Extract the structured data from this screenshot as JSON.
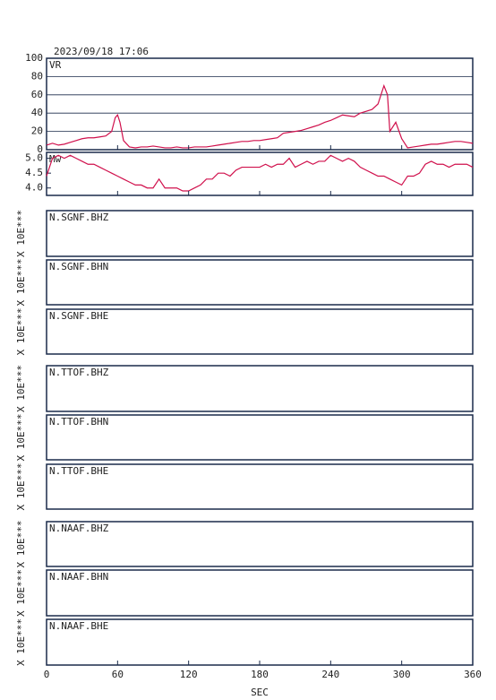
{
  "chart_data": [
    {
      "type": "line",
      "title": "2023/09/18 17:06",
      "label": "VR",
      "xlim": [
        0,
        360
      ],
      "ylim": [
        0,
        100
      ],
      "yticks": [
        0,
        20,
        40,
        60,
        80,
        100
      ],
      "grid": true,
      "x": [
        0,
        5,
        10,
        15,
        20,
        25,
        30,
        35,
        40,
        45,
        50,
        55,
        58,
        60,
        62,
        65,
        70,
        75,
        80,
        85,
        90,
        95,
        100,
        105,
        110,
        115,
        120,
        125,
        130,
        135,
        140,
        145,
        150,
        155,
        160,
        165,
        170,
        175,
        180,
        185,
        190,
        195,
        200,
        205,
        210,
        215,
        220,
        225,
        230,
        235,
        240,
        245,
        250,
        255,
        260,
        265,
        270,
        275,
        280,
        285,
        288,
        290,
        295,
        300,
        305,
        310,
        315,
        320,
        325,
        330,
        335,
        340,
        345,
        350,
        355,
        360
      ],
      "series": [
        {
          "color": "#d0104c",
          "values": [
            5,
            7,
            5,
            6,
            8,
            10,
            12,
            13,
            13,
            14,
            15,
            20,
            35,
            38,
            30,
            10,
            3,
            2,
            3,
            3,
            4,
            3,
            2,
            2,
            3,
            2,
            2,
            3,
            3,
            3,
            4,
            5,
            6,
            7,
            8,
            9,
            9,
            10,
            10,
            11,
            12,
            13,
            18,
            19,
            20,
            21,
            23,
            25,
            27,
            30,
            32,
            35,
            38,
            37,
            36,
            40,
            42,
            44,
            50,
            70,
            60,
            20,
            30,
            12,
            2,
            3,
            4,
            5,
            6,
            6,
            7,
            8,
            9,
            9,
            8,
            7
          ]
        }
      ]
    },
    {
      "type": "line",
      "label": "Mw",
      "xlim": [
        0,
        360
      ],
      "ylim": [
        3.75,
        5.2
      ],
      "yticks": [
        {
          "value": 4,
          "label": "4.0"
        },
        4.5,
        {
          "value": 5,
          "label": "5.0"
        }
      ],
      "grid": false,
      "x": [
        0,
        5,
        10,
        15,
        20,
        25,
        30,
        35,
        40,
        45,
        50,
        55,
        60,
        65,
        70,
        75,
        80,
        85,
        90,
        95,
        100,
        105,
        110,
        115,
        120,
        125,
        130,
        135,
        140,
        145,
        150,
        155,
        160,
        165,
        170,
        175,
        180,
        185,
        190,
        195,
        200,
        205,
        210,
        215,
        220,
        225,
        230,
        235,
        240,
        245,
        250,
        255,
        260,
        265,
        270,
        275,
        280,
        285,
        290,
        295,
        300,
        305,
        310,
        315,
        320,
        325,
        330,
        335,
        340,
        345,
        350,
        355,
        360
      ],
      "series": [
        {
          "color": "#d0104c",
          "values": [
            4.4,
            5.0,
            5.1,
            5.0,
            5.1,
            5.0,
            4.9,
            4.8,
            4.8,
            4.7,
            4.6,
            4.5,
            4.4,
            4.3,
            4.2,
            4.1,
            4.1,
            4.0,
            4.0,
            4.3,
            4.0,
            4.0,
            4.0,
            3.9,
            3.9,
            4.0,
            4.1,
            4.3,
            4.3,
            4.5,
            4.5,
            4.4,
            4.6,
            4.7,
            4.7,
            4.7,
            4.7,
            4.8,
            4.7,
            4.8,
            4.8,
            5.0,
            4.7,
            4.8,
            4.9,
            4.8,
            4.9,
            4.9,
            5.1,
            5.0,
            4.9,
            5.0,
            4.9,
            4.7,
            4.6,
            4.5,
            4.4,
            4.4,
            4.3,
            4.2,
            4.1,
            4.4,
            4.4,
            4.5,
            4.8,
            4.9,
            4.8,
            4.8,
            4.7,
            4.8,
            4.8,
            4.8,
            4.7
          ]
        }
      ]
    },
    {
      "type": "line",
      "label": "N.SGNF.BHZ",
      "ylabel": "X 10E***"
    },
    {
      "type": "line",
      "label": "N.SGNF.BHN",
      "ylabel": "X 10E***"
    },
    {
      "type": "line",
      "label": "N.SGNF.BHE",
      "ylabel": "X 10E***"
    },
    {
      "type": "line",
      "label": "N.TTOF.BHZ",
      "ylabel": "X 10E***"
    },
    {
      "type": "line",
      "label": "N.TTOF.BHN",
      "ylabel": "X 10E***"
    },
    {
      "type": "line",
      "label": "N.TTOF.BHE",
      "ylabel": "X 10E***"
    },
    {
      "type": "line",
      "label": "N.NAAF.BHZ",
      "ylabel": "X 10E***"
    },
    {
      "type": "line",
      "label": "N.NAAF.BHN",
      "ylabel": "X 10E***"
    },
    {
      "type": "line",
      "label": "N.NAAF.BHE",
      "ylabel": "X 10E***",
      "xlabel": "SEC",
      "xlim": [
        0,
        360
      ],
      "xticks": [
        0,
        60,
        120,
        180,
        240,
        300,
        360
      ]
    }
  ]
}
